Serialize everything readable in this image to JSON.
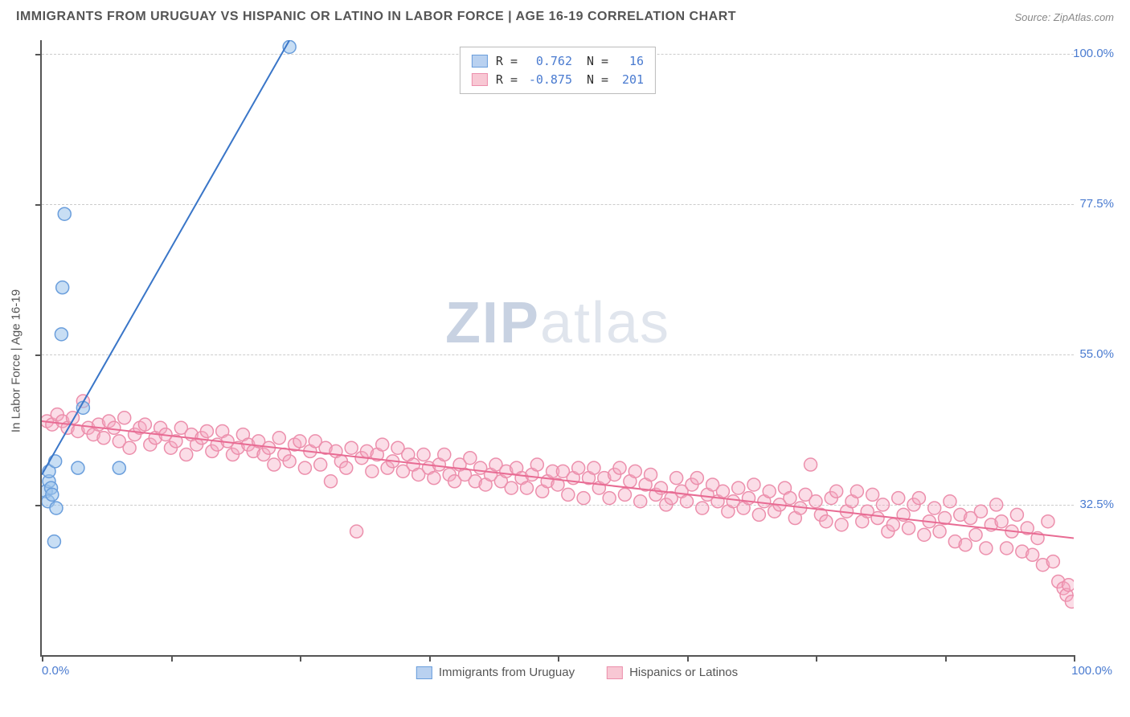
{
  "header": {
    "title": "IMMIGRANTS FROM URUGUAY VS HISPANIC OR LATINO IN LABOR FORCE | AGE 16-19 CORRELATION CHART",
    "source": "Source: ZipAtlas.com"
  },
  "watermark": {
    "zip": "ZIP",
    "atlas": "atlas"
  },
  "y_axis_label": "In Labor Force | Age 16-19",
  "axis": {
    "xlim": [
      0,
      100
    ],
    "ylim": [
      10,
      102
    ],
    "y_grid": [
      32.5,
      55.0,
      77.5,
      100.0
    ],
    "y_grid_labels": [
      "32.5%",
      "55.0%",
      "77.5%",
      "100.0%"
    ],
    "x_ticks": [
      0,
      12.5,
      25,
      37.5,
      50,
      62.5,
      75,
      87.5,
      100
    ],
    "x_min_label": "0.0%",
    "x_max_label": "100.0%",
    "axis_label_color": "#4a7bd0",
    "grid_color": "#cccccc",
    "axis_color": "#555555"
  },
  "legend_top": {
    "series": [
      {
        "swatch_fill": "#b9d1f0",
        "swatch_border": "#6a9edc",
        "r_label": "R =",
        "r_value": "0.762",
        "n_label": "N =",
        "n_value": "16"
      },
      {
        "swatch_fill": "#f8c8d4",
        "swatch_border": "#ec8fac",
        "r_label": "R =",
        "r_value": "-0.875",
        "n_label": "N =",
        "n_value": "201"
      }
    ],
    "text_color_key": "#333333",
    "text_color_val": "#4a7bd0"
  },
  "legend_bottom": {
    "items": [
      {
        "swatch_fill": "#b9d1f0",
        "swatch_border": "#6a9edc",
        "label": "Immigrants from Uruguay"
      },
      {
        "swatch_fill": "#f8c8d4",
        "swatch_border": "#ec8fac",
        "label": "Hispanics or Latinos"
      }
    ],
    "text_color": "#555555"
  },
  "series_blue": {
    "marker_fill": "rgba(155,195,235,0.55)",
    "marker_stroke": "#6a9edc",
    "marker_radius": 8,
    "line_color": "#3a76c8",
    "line_width": 2,
    "trend": {
      "x1": 0,
      "y1": 37,
      "x2": 24,
      "y2": 102
    },
    "points": [
      [
        0.4,
        34.5
      ],
      [
        0.6,
        33
      ],
      [
        0.7,
        36
      ],
      [
        0.7,
        37.5
      ],
      [
        0.9,
        35
      ],
      [
        1.0,
        34
      ],
      [
        1.2,
        27
      ],
      [
        1.3,
        39
      ],
      [
        1.4,
        32
      ],
      [
        1.9,
        58
      ],
      [
        2.0,
        65
      ],
      [
        2.2,
        76
      ],
      [
        3.5,
        38
      ],
      [
        4.0,
        47
      ],
      [
        7.5,
        38
      ],
      [
        24.0,
        101
      ]
    ]
  },
  "series_pink": {
    "marker_fill": "rgba(245,170,195,0.40)",
    "marker_stroke": "#ec8fac",
    "marker_radius": 8,
    "line_color": "#e86b93",
    "line_width": 2,
    "trend": {
      "x1": 0,
      "y1": 45,
      "x2": 100,
      "y2": 27.5
    },
    "points": [
      [
        0.5,
        45
      ],
      [
        1,
        44.5
      ],
      [
        1.5,
        46
      ],
      [
        2,
        45
      ],
      [
        2.5,
        44
      ],
      [
        3,
        45.5
      ],
      [
        3.5,
        43.5
      ],
      [
        4,
        48
      ],
      [
        4.5,
        44
      ],
      [
        5,
        43
      ],
      [
        5.5,
        44.5
      ],
      [
        6,
        42.5
      ],
      [
        6.5,
        45
      ],
      [
        7,
        44
      ],
      [
        7.5,
        42
      ],
      [
        8,
        45.5
      ],
      [
        8.5,
        41
      ],
      [
        9,
        43
      ],
      [
        9.5,
        44
      ],
      [
        10,
        44.5
      ],
      [
        10.5,
        41.5
      ],
      [
        11,
        42.5
      ],
      [
        11.5,
        44
      ],
      [
        12,
        43
      ],
      [
        12.5,
        41
      ],
      [
        13,
        42
      ],
      [
        13.5,
        44
      ],
      [
        14,
        40
      ],
      [
        14.5,
        43
      ],
      [
        15,
        41.5
      ],
      [
        15.5,
        42.5
      ],
      [
        16,
        43.5
      ],
      [
        16.5,
        40.5
      ],
      [
        17,
        41.5
      ],
      [
        17.5,
        43.5
      ],
      [
        18,
        42
      ],
      [
        18.5,
        40
      ],
      [
        19,
        41
      ],
      [
        19.5,
        43
      ],
      [
        20,
        41.5
      ],
      [
        20.5,
        40.5
      ],
      [
        21,
        42
      ],
      [
        21.5,
        40
      ],
      [
        22,
        41
      ],
      [
        22.5,
        38.5
      ],
      [
        23,
        42.5
      ],
      [
        23.5,
        40
      ],
      [
        24,
        39
      ],
      [
        24.5,
        41.5
      ],
      [
        25,
        42
      ],
      [
        25.5,
        38
      ],
      [
        26,
        40.5
      ],
      [
        26.5,
        42
      ],
      [
        27,
        38.5
      ],
      [
        27.5,
        41
      ],
      [
        28,
        36
      ],
      [
        28.5,
        40.5
      ],
      [
        29,
        39
      ],
      [
        29.5,
        38
      ],
      [
        30,
        41
      ],
      [
        30.5,
        28.5
      ],
      [
        31,
        39.5
      ],
      [
        31.5,
        40.5
      ],
      [
        32,
        37.5
      ],
      [
        32.5,
        40
      ],
      [
        33,
        41.5
      ],
      [
        33.5,
        38
      ],
      [
        34,
        39
      ],
      [
        34.5,
        41
      ],
      [
        35,
        37.5
      ],
      [
        35.5,
        40
      ],
      [
        36,
        38.5
      ],
      [
        36.5,
        37
      ],
      [
        37,
        40
      ],
      [
        37.5,
        38
      ],
      [
        38,
        36.5
      ],
      [
        38.5,
        38.5
      ],
      [
        39,
        40
      ],
      [
        39.5,
        37
      ],
      [
        40,
        36
      ],
      [
        40.5,
        38.5
      ],
      [
        41,
        37
      ],
      [
        41.5,
        39.5
      ],
      [
        42,
        36
      ],
      [
        42.5,
        38
      ],
      [
        43,
        35.5
      ],
      [
        43.5,
        37
      ],
      [
        44,
        38.5
      ],
      [
        44.5,
        36
      ],
      [
        45,
        37.5
      ],
      [
        45.5,
        35
      ],
      [
        46,
        38
      ],
      [
        46.5,
        36.5
      ],
      [
        47,
        35
      ],
      [
        47.5,
        37
      ],
      [
        48,
        38.5
      ],
      [
        48.5,
        34.5
      ],
      [
        49,
        36
      ],
      [
        49.5,
        37.5
      ],
      [
        50,
        35.5
      ],
      [
        50.5,
        37.5
      ],
      [
        51,
        34
      ],
      [
        51.5,
        36.5
      ],
      [
        52,
        38
      ],
      [
        52.5,
        33.5
      ],
      [
        53,
        36.5
      ],
      [
        53.5,
        38
      ],
      [
        54,
        35
      ],
      [
        54.5,
        36.5
      ],
      [
        55,
        33.5
      ],
      [
        55.5,
        37
      ],
      [
        56,
        38
      ],
      [
        56.5,
        34
      ],
      [
        57,
        36
      ],
      [
        57.5,
        37.5
      ],
      [
        58,
        33
      ],
      [
        58.5,
        35.5
      ],
      [
        59,
        37
      ],
      [
        59.5,
        34
      ],
      [
        60,
        35
      ],
      [
        60.5,
        32.5
      ],
      [
        61,
        33.5
      ],
      [
        61.5,
        36.5
      ],
      [
        62,
        34.5
      ],
      [
        62.5,
        33
      ],
      [
        63,
        35.5
      ],
      [
        63.5,
        36.5
      ],
      [
        64,
        32
      ],
      [
        64.5,
        34
      ],
      [
        65,
        35.5
      ],
      [
        65.5,
        33
      ],
      [
        66,
        34.5
      ],
      [
        66.5,
        31.5
      ],
      [
        67,
        33
      ],
      [
        67.5,
        35
      ],
      [
        68,
        32
      ],
      [
        68.5,
        33.5
      ],
      [
        69,
        35.5
      ],
      [
        69.5,
        31
      ],
      [
        70,
        33
      ],
      [
        70.5,
        34.5
      ],
      [
        71,
        31.5
      ],
      [
        71.5,
        32.5
      ],
      [
        72,
        35
      ],
      [
        72.5,
        33.5
      ],
      [
        73,
        30.5
      ],
      [
        73.5,
        32
      ],
      [
        74,
        34
      ],
      [
        74.5,
        38.5
      ],
      [
        75,
        33
      ],
      [
        75.5,
        31
      ],
      [
        76,
        30
      ],
      [
        76.5,
        33.5
      ],
      [
        77,
        34.5
      ],
      [
        77.5,
        29.5
      ],
      [
        78,
        31.5
      ],
      [
        78.5,
        33
      ],
      [
        79,
        34.5
      ],
      [
        79.5,
        30
      ],
      [
        80,
        31.5
      ],
      [
        80.5,
        34
      ],
      [
        81,
        30.5
      ],
      [
        81.5,
        32.5
      ],
      [
        82,
        28.5
      ],
      [
        82.5,
        29.5
      ],
      [
        83,
        33.5
      ],
      [
        83.5,
        31
      ],
      [
        84,
        29
      ],
      [
        84.5,
        32.5
      ],
      [
        85,
        33.5
      ],
      [
        85.5,
        28
      ],
      [
        86,
        30
      ],
      [
        86.5,
        32
      ],
      [
        87,
        28.5
      ],
      [
        87.5,
        30.5
      ],
      [
        88,
        33
      ],
      [
        88.5,
        27
      ],
      [
        89,
        31
      ],
      [
        89.5,
        26.5
      ],
      [
        90,
        30.5
      ],
      [
        90.5,
        28
      ],
      [
        91,
        31.5
      ],
      [
        91.5,
        26
      ],
      [
        92,
        29.5
      ],
      [
        92.5,
        32.5
      ],
      [
        93,
        30
      ],
      [
        93.5,
        26
      ],
      [
        94,
        28.5
      ],
      [
        94.5,
        31
      ],
      [
        95,
        25.5
      ],
      [
        95.5,
        29
      ],
      [
        96,
        25
      ],
      [
        96.5,
        27.5
      ],
      [
        97,
        23.5
      ],
      [
        97.5,
        30
      ],
      [
        98,
        24
      ],
      [
        98.5,
        21
      ],
      [
        99,
        20
      ],
      [
        99.3,
        19
      ],
      [
        99.5,
        20.5
      ],
      [
        99.8,
        18
      ]
    ]
  }
}
